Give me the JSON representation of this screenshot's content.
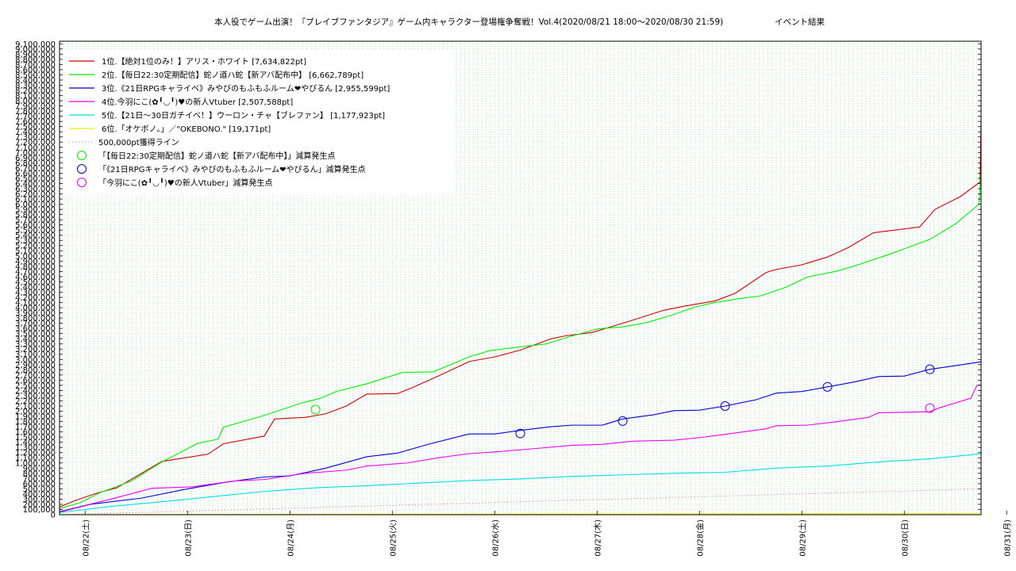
{
  "chart_data": {
    "type": "line",
    "title": "本人役でゲーム出演！『ブレイブファンタジア』ゲーム内キャラクター登場権争奪戦！Vol.4(2020/08/21 18:00〜2020/08/30 21:59)",
    "title_suffix": "イベント結果",
    "x_range_days": [
      0,
      9
    ],
    "x_tick_labels": [
      "08/22(土)",
      "08/23(日)",
      "08/24(月)",
      "08/25(火)",
      "08/26(水)",
      "08/27(木)",
      "08/28(金)",
      "08/29(土)",
      "08/30(日)",
      "08/31(月)"
    ],
    "ylim": [
      0,
      9150000
    ],
    "y_tick_step": 100000,
    "y_tick_labels": [
      "0",
      "100,000",
      "200,000",
      "300,000",
      "400,000",
      "500,000",
      "600,000",
      "700,000",
      "800,000",
      "900,000",
      "1,000,000",
      "1,100,000",
      "1,200,000",
      "1,300,000",
      "1,400,000",
      "1,500,000",
      "1,600,000",
      "1,700,000",
      "1,800,000",
      "1,900,000",
      "2,000,000",
      "2,100,000",
      "2,200,000",
      "2,300,000",
      "2,400,000",
      "2,500,000",
      "2,600,000",
      "2,700,000",
      "2,800,000",
      "2,900,000",
      "3,000,000",
      "3,100,000",
      "3,200,000",
      "3,300,000",
      "3,400,000",
      "3,500,000",
      "3,600,000",
      "3,700,000",
      "3,800,000",
      "3,900,000",
      "4,000,000",
      "4,100,000",
      "4,200,000",
      "4,300,000",
      "4,400,000",
      "4,500,000",
      "4,600,000",
      "4,700,000",
      "4,800,000",
      "4,900,000",
      "5,000,000",
      "5,100,000",
      "5,200,000",
      "5,300,000",
      "5,400,000",
      "5,500,000",
      "5,600,000",
      "5,700,000",
      "5,800,000",
      "5,900,000",
      "6,000,000",
      "6,100,000",
      "6,200,000",
      "6,300,000",
      "6,400,000",
      "6,500,000",
      "6,600,000",
      "6,700,000",
      "6,800,000",
      "6,900,000",
      "7,000,000",
      "7,100,000",
      "7,200,000",
      "7,300,000",
      "7,400,000",
      "7,500,000",
      "7,600,000",
      "7,700,000",
      "7,800,000",
      "7,900,000",
      "8,000,000",
      "8,100,000",
      "8,200,000",
      "8,300,000",
      "8,400,000",
      "8,500,000",
      "8,600,000",
      "8,700,000",
      "8,800,000",
      "8,900,000",
      "9,000,000",
      "9,100,000"
    ],
    "grid": true,
    "legend_position": "top-left",
    "series": [
      {
        "name": "1位.【絶対1位のみ！】アリス・ホワイト [7,634,822pt]",
        "color": "#cc0000",
        "x": [
          0,
          0.16,
          0.37,
          0.56,
          1.0,
          1.45,
          1.6,
          2.0,
          2.1,
          2.4,
          2.6,
          2.8,
          3.0,
          3.3,
          3.45,
          3.7,
          4.0,
          4.25,
          4.5,
          4.8,
          4.95,
          5.2,
          5.5,
          5.9,
          6.1,
          6.4,
          6.6,
          6.9,
          7.0,
          7.25,
          7.5,
          7.7,
          7.95,
          8.4,
          8.55,
          8.8,
          8.99,
          9.0
        ],
        "y": [
          150000,
          280000,
          420000,
          520000,
          1030000,
          1170000,
          1370000,
          1520000,
          1850000,
          1880000,
          1950000,
          2100000,
          2330000,
          2340000,
          2460000,
          2680000,
          2960000,
          3050000,
          3180000,
          3400000,
          3460000,
          3520000,
          3700000,
          3950000,
          4030000,
          4130000,
          4280000,
          4680000,
          4740000,
          4830000,
          4980000,
          5160000,
          5450000,
          5560000,
          5900000,
          6150000,
          6430000,
          7634822
        ]
      },
      {
        "name": "2位.【毎日22:30定期配信】蛇ノ道ハ蛇【新アバ配布中】 [6,662,789pt]",
        "color": "#00ee00",
        "x": [
          0,
          0.2,
          0.4,
          0.7,
          1.0,
          1.35,
          1.55,
          1.6,
          2.0,
          2.35,
          2.55,
          2.7,
          3.0,
          3.35,
          3.65,
          4.0,
          4.2,
          4.4,
          4.75,
          5.0,
          5.25,
          5.5,
          5.75,
          6.0,
          6.2,
          6.4,
          6.65,
          6.85,
          7.1,
          7.3,
          7.6,
          7.8,
          8.1,
          8.5,
          8.75,
          8.98,
          9.0
        ],
        "y": [
          120000,
          230000,
          430000,
          650000,
          1020000,
          1380000,
          1460000,
          1690000,
          1920000,
          2150000,
          2250000,
          2380000,
          2530000,
          2750000,
          2760000,
          3050000,
          3170000,
          3220000,
          3300000,
          3450000,
          3590000,
          3630000,
          3720000,
          3870000,
          4010000,
          4100000,
          4180000,
          4230000,
          4400000,
          4590000,
          4710000,
          4830000,
          5030000,
          5320000,
          5620000,
          6000000,
          6662789
        ]
      },
      {
        "name": "3位.《21日RPGキャライベ》みやびのもふもふルーム❤やぴるん [2,955,599pt]",
        "color": "#0000cc",
        "x": [
          0,
          0.3,
          0.8,
          1.2,
          1.6,
          2.0,
          2.25,
          2.6,
          3.0,
          3.3,
          3.6,
          4.0,
          4.25,
          4.5,
          4.8,
          5.0,
          5.3,
          5.5,
          5.8,
          6.0,
          6.25,
          6.5,
          6.8,
          7.0,
          7.25,
          7.5,
          7.75,
          8.0,
          8.25,
          8.5,
          8.75,
          9.0
        ],
        "y": [
          50000,
          200000,
          320000,
          480000,
          620000,
          730000,
          750000,
          900000,
          1120000,
          1190000,
          1360000,
          1560000,
          1560000,
          1630000,
          1700000,
          1730000,
          1730000,
          1850000,
          1930000,
          2010000,
          2020000,
          2100000,
          2220000,
          2350000,
          2380000,
          2470000,
          2560000,
          2670000,
          2680000,
          2810000,
          2880000,
          2955599
        ]
      },
      {
        "name": "4位.今羽にこ(✿╹◡╹)♥の新人Vtuber [2,507,588pt]",
        "color": "#ee00ee",
        "x": [
          0,
          0.5,
          0.9,
          1.3,
          1.7,
          2.0,
          2.4,
          2.8,
          3.0,
          3.4,
          3.7,
          4.0,
          4.3,
          4.6,
          5.0,
          5.3,
          5.6,
          6.0,
          6.3,
          6.6,
          6.9,
          7.0,
          7.3,
          7.6,
          7.9,
          8.0,
          8.25,
          8.5,
          8.6,
          8.9,
          8.96,
          9.0
        ],
        "y": [
          60000,
          300000,
          510000,
          540000,
          650000,
          680000,
          800000,
          860000,
          940000,
          1000000,
          1100000,
          1180000,
          1220000,
          1270000,
          1340000,
          1360000,
          1420000,
          1440000,
          1500000,
          1580000,
          1660000,
          1720000,
          1730000,
          1800000,
          1880000,
          1970000,
          1980000,
          1990000,
          2070000,
          2250000,
          2500000,
          2507588
        ]
      },
      {
        "name": "5位.【21日〜30日ガチイベ！】ウーロン・チャ【ブレファン】 [1,177,923pt]",
        "color": "#00dddd",
        "x": [
          0,
          0.5,
          1.0,
          1.5,
          2.0,
          2.5,
          3.0,
          3.5,
          4.0,
          4.5,
          5.0,
          5.5,
          6.0,
          6.5,
          7.0,
          7.5,
          8.0,
          8.5,
          9.0
        ],
        "y": [
          40000,
          160000,
          250000,
          350000,
          450000,
          520000,
          560000,
          610000,
          660000,
          690000,
          740000,
          770000,
          800000,
          820000,
          900000,
          940000,
          1020000,
          1080000,
          1177923
        ]
      },
      {
        "name": "6位.「オケボノ。」／\"OKEBONO.\" [19,171pt]",
        "color": "#eeee00",
        "x": [
          0,
          1.0,
          3.0,
          6.0,
          9.0
        ],
        "y": [
          2000,
          5000,
          9000,
          14000,
          19171
        ]
      }
    ],
    "reference_line": {
      "name": "500,000pt獲得ライン",
      "color": "#dd6666",
      "x": [
        0,
        9
      ],
      "y": [
        0,
        500000
      ]
    },
    "markers": [
      {
        "name": "「【毎日22:30定期配信】蛇ノ道ハ蛇【新アバ配布中】」減算発生点",
        "color": "#00ee00",
        "points": [
          {
            "x": 2.5,
            "y": 2030000
          }
        ]
      },
      {
        "name": "「《21日RPGキャライベ》みやびのもふもふルーム❤やぴるん」減算発生点",
        "color": "#0000cc",
        "points": [
          {
            "x": 4.5,
            "y": 1570000
          },
          {
            "x": 5.5,
            "y": 1810000
          },
          {
            "x": 6.5,
            "y": 2100000
          },
          {
            "x": 7.5,
            "y": 2470000
          },
          {
            "x": 8.5,
            "y": 2810000
          }
        ]
      },
      {
        "name": "「今羽にこ(✿╹◡╹)♥の新人Vtuber」減算発生点",
        "color": "#ee00ee",
        "points": [
          {
            "x": 8.5,
            "y": 2060000
          }
        ]
      }
    ]
  }
}
